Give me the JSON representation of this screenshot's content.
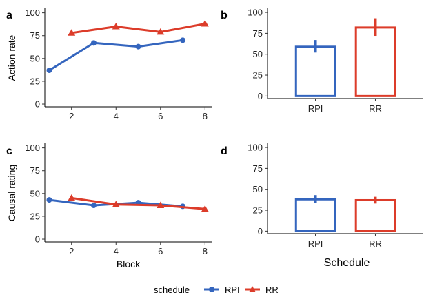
{
  "colors": {
    "RPI": "#3465be",
    "RR": "#dc3c2a"
  },
  "legend": {
    "title": "schedule",
    "items": [
      "RPI",
      "RR"
    ]
  },
  "x_axis_shared_title": "Block",
  "bar_axis_shared_title": "Schedule",
  "chart_data": [
    {
      "panel": "a",
      "type": "line",
      "ylabel": "Action rate",
      "xlabel": "",
      "xlim": [
        0.8,
        8.3
      ],
      "ylim": [
        -3,
        105
      ],
      "xticks": [
        2,
        4,
        6,
        8
      ],
      "yticks": [
        0,
        25,
        50,
        75,
        100
      ],
      "series": [
        {
          "name": "RPI",
          "marker": "circle",
          "x": [
            1,
            3,
            5,
            7
          ],
          "y": [
            37,
            67,
            63,
            70
          ]
        },
        {
          "name": "RR",
          "marker": "triangle",
          "x": [
            2,
            4,
            6,
            8
          ],
          "y": [
            78,
            85,
            79,
            88
          ]
        }
      ]
    },
    {
      "panel": "b",
      "type": "bar",
      "ylabel": "",
      "xlabel": "",
      "ylim": [
        -3,
        105
      ],
      "yticks": [
        0,
        25,
        50,
        75,
        100
      ],
      "categories": [
        "RPI",
        "RR"
      ],
      "values": [
        59,
        82
      ],
      "errors": [
        [
          52,
          67
        ],
        [
          72,
          93
        ]
      ]
    },
    {
      "panel": "c",
      "type": "line",
      "ylabel": "Causal rating",
      "xlabel": "Block",
      "xlim": [
        0.8,
        8.3
      ],
      "ylim": [
        -3,
        105
      ],
      "xticks": [
        2,
        4,
        6,
        8
      ],
      "yticks": [
        0,
        25,
        50,
        75,
        100
      ],
      "series": [
        {
          "name": "RPI",
          "marker": "circle",
          "x": [
            1,
            3,
            5,
            7
          ],
          "y": [
            43,
            37,
            40,
            36
          ]
        },
        {
          "name": "RR",
          "marker": "triangle",
          "x": [
            2,
            4,
            6,
            8
          ],
          "y": [
            45,
            38,
            37,
            33
          ]
        }
      ]
    },
    {
      "panel": "d",
      "type": "bar",
      "ylabel": "",
      "xlabel": "Schedule",
      "ylim": [
        -3,
        105
      ],
      "yticks": [
        0,
        25,
        50,
        75,
        100
      ],
      "categories": [
        "RPI",
        "RR"
      ],
      "values": [
        38,
        37
      ],
      "errors": [
        [
          34,
          43
        ],
        [
          33,
          41
        ]
      ]
    }
  ]
}
